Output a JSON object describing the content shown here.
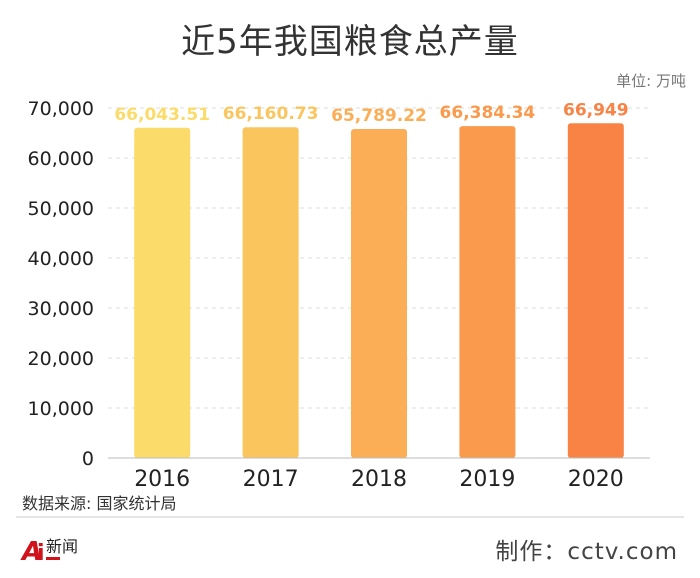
{
  "chart_data": {
    "type": "bar",
    "title": "近5年我国粮食总产量",
    "unit_label": "单位: 万吨",
    "categories": [
      "2016",
      "2017",
      "2018",
      "2019",
      "2020"
    ],
    "values": [
      66043.51,
      66160.73,
      65789.22,
      66384.34,
      66949
    ],
    "value_labels": [
      "66,043.51",
      "66,160.73",
      "65,789.22",
      "66,384.34",
      "66,949"
    ],
    "ylim": [
      0,
      70000
    ],
    "yticks": [
      "0",
      "10,000",
      "20,000",
      "30,000",
      "40,000",
      "50,000",
      "60,000",
      "70,000"
    ],
    "ytick_values": [
      0,
      10000,
      20000,
      30000,
      40000,
      50000,
      60000,
      70000
    ],
    "grid": true,
    "bar_colors": [
      "#fbdc6b",
      "#fbc55e",
      "#fbae56",
      "#fa9a4d",
      "#f88344"
    ],
    "xlabel": "",
    "ylabel": ""
  },
  "footer": {
    "source": "数据来源: 国家统计局",
    "credit": "制作：cctv.com",
    "logo_text": "新闻"
  }
}
